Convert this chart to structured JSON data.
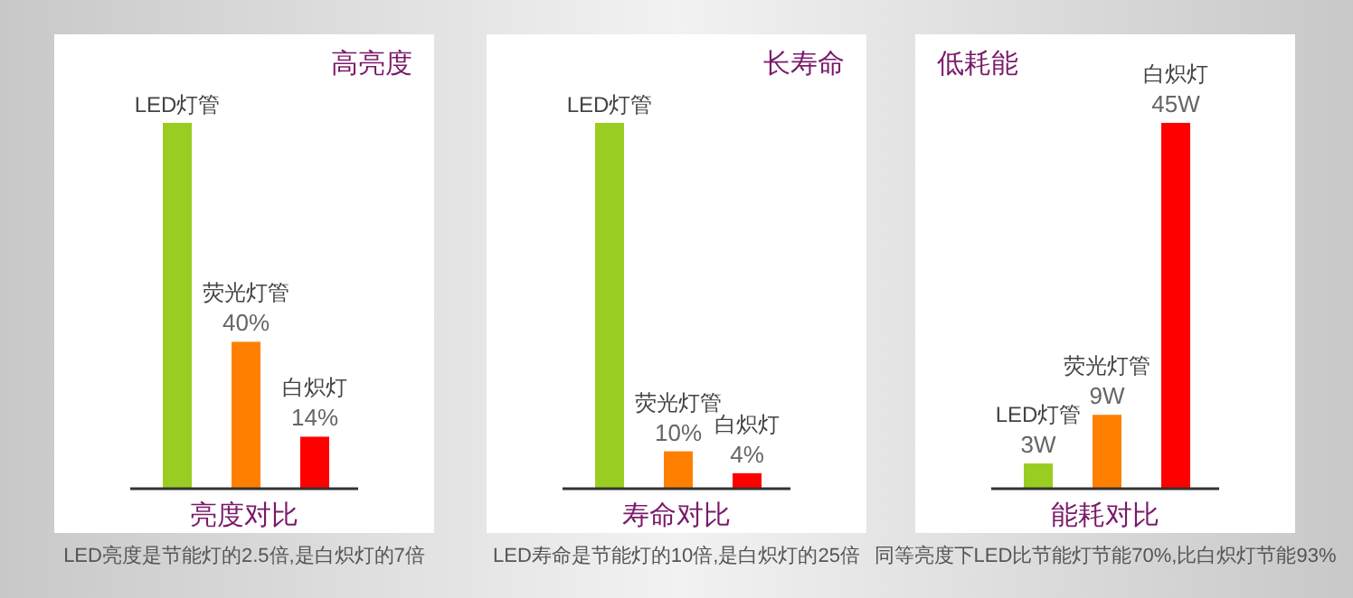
{
  "chart_data": [
    {
      "type": "bar",
      "title": "高亮度",
      "xlabel": "亮度对比",
      "categories": [
        "LED灯管",
        "荧光灯管",
        "白炽灯"
      ],
      "values": [
        100,
        40,
        14
      ],
      "colors": [
        "#9acd22",
        "#ff8000",
        "#ff0000"
      ],
      "value_labels": [
        null,
        "40%",
        "14%"
      ],
      "annotations": [
        "LED亮度是节能灯的2.5倍,是白炽灯的7倍"
      ]
    },
    {
      "type": "bar",
      "title": "长寿命",
      "xlabel": "寿命对比",
      "categories": [
        "LED灯管",
        "荧光灯管",
        "白炽灯"
      ],
      "values": [
        100,
        10,
        4
      ],
      "colors": [
        "#9acd22",
        "#ff8000",
        "#ff0000"
      ],
      "value_labels": [
        null,
        "10%",
        "4%"
      ],
      "annotations": [
        "LED寿命是节能灯的10倍,是白炽灯的25倍"
      ]
    },
    {
      "type": "bar",
      "title": "低耗能",
      "xlabel": "能耗对比",
      "categories": [
        "LED灯管",
        "荧光灯管",
        "白炽灯"
      ],
      "values": [
        3,
        9,
        45
      ],
      "colors": [
        "#9acd22",
        "#ff8000",
        "#ff0000"
      ],
      "value_labels": [
        "3W",
        "9W",
        "45W"
      ],
      "annotations": [
        "同等亮度下LED比节能灯节能70%,比白炽灯节能93%"
      ]
    }
  ]
}
